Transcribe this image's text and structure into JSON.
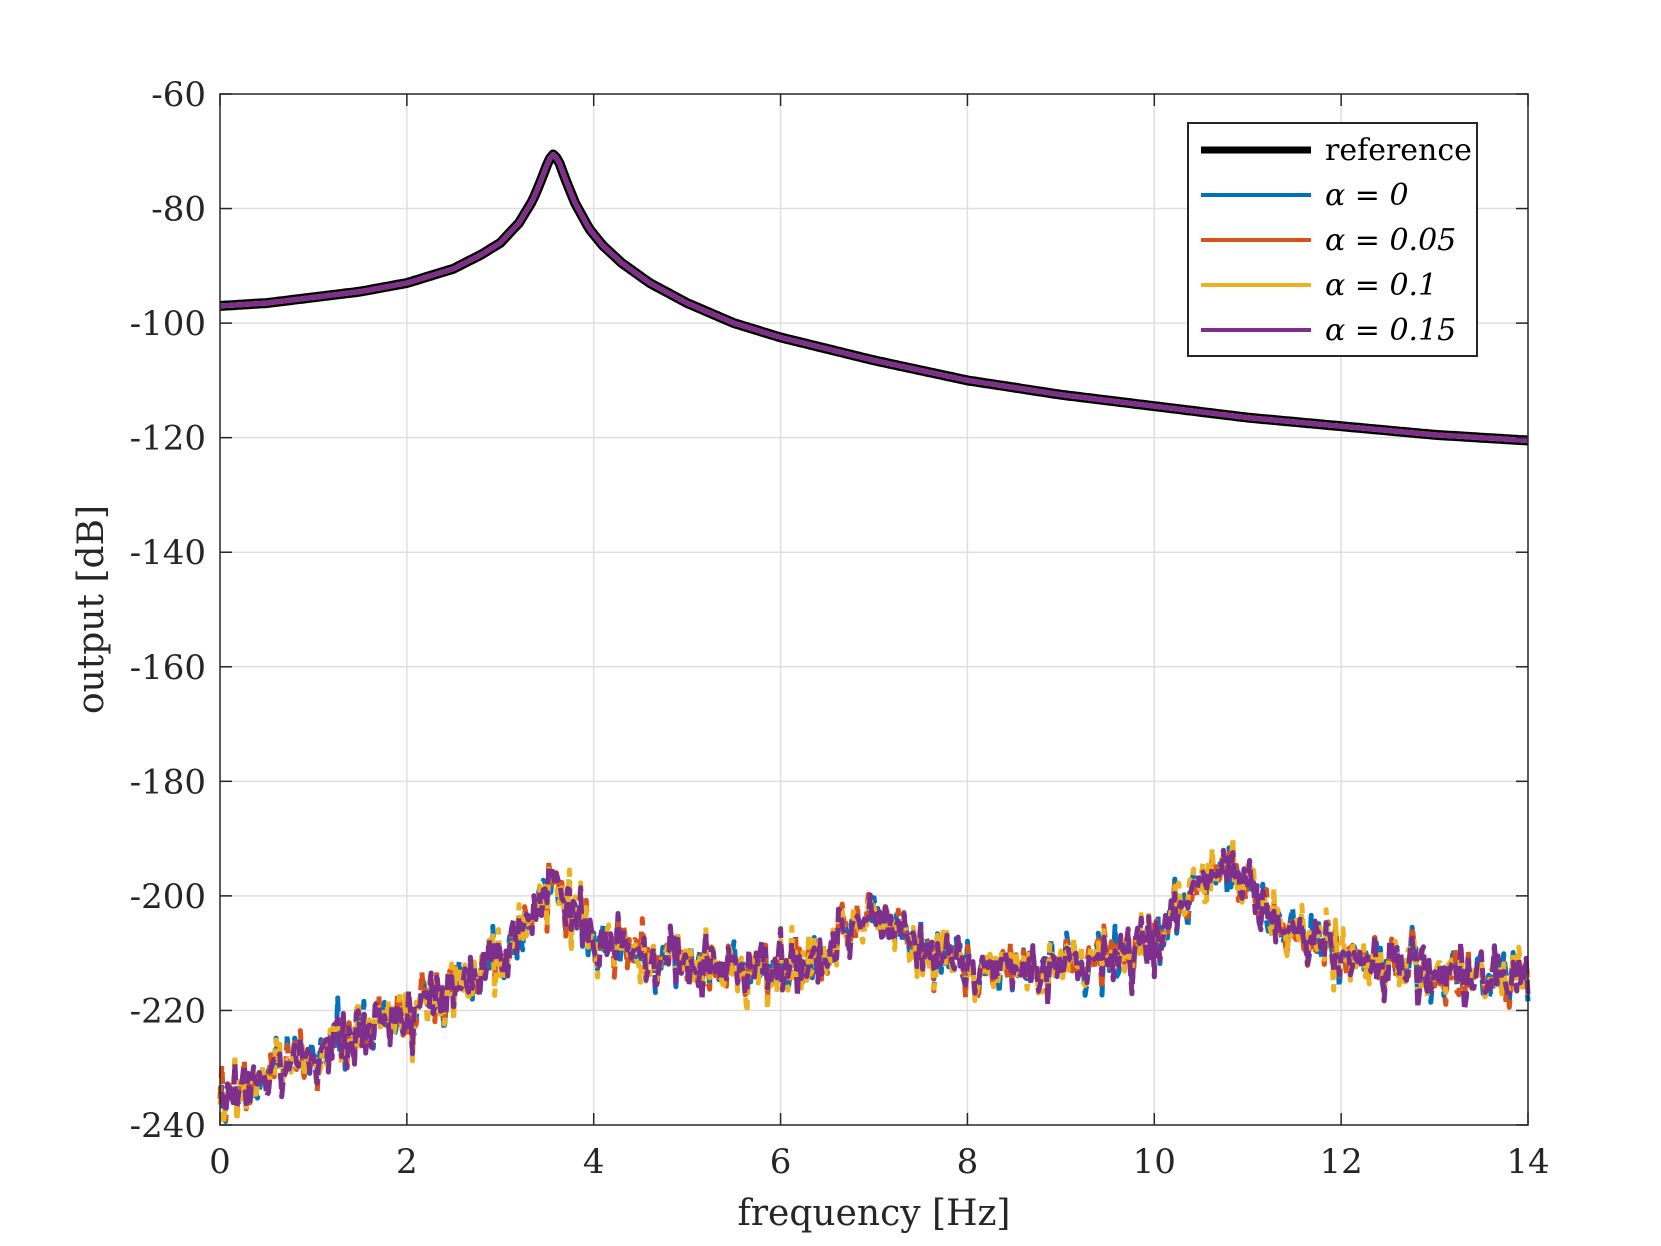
{
  "chart_data": {
    "type": "line",
    "title": "",
    "xlabel": "frequency [Hz]",
    "ylabel": "output [dB]",
    "xlim": [
      0,
      14
    ],
    "ylim": [
      -240,
      -60
    ],
    "xticks": [
      0,
      2,
      4,
      6,
      8,
      10,
      12,
      14
    ],
    "yticks": [
      -60,
      -80,
      -100,
      -120,
      -140,
      -160,
      -180,
      -200,
      -220,
      -240
    ],
    "xtick_labels": [
      "0",
      "2",
      "4",
      "6",
      "8",
      "10",
      "12",
      "14"
    ],
    "ytick_labels": [
      "-60",
      "-80",
      "-100",
      "-120",
      "-140",
      "-160",
      "-180",
      "-200",
      "-220",
      "-240"
    ],
    "grid": true,
    "legend_position": "top-right",
    "reference_curve": {
      "x": [
        0,
        0.5,
        1,
        1.5,
        2,
        2.5,
        2.8,
        3.0,
        3.2,
        3.35,
        3.45,
        3.52,
        3.57,
        3.62,
        3.7,
        3.8,
        3.95,
        4.1,
        4.3,
        4.6,
        5,
        5.5,
        6,
        7,
        8,
        9,
        10,
        11,
        12,
        13,
        14
      ],
      "y": [
        -97,
        -96.5,
        -95.5,
        -94.5,
        -93,
        -90.5,
        -88,
        -86,
        -82.5,
        -78.5,
        -74.5,
        -71.5,
        -70.5,
        -71.5,
        -75,
        -79,
        -83.5,
        -86.5,
        -89.5,
        -93,
        -96.5,
        -100,
        -102.5,
        -106.5,
        -110,
        -112.5,
        -114.5,
        -116.5,
        -118,
        -119.5,
        -120.5
      ]
    },
    "noise_envelope": {
      "x": [
        0,
        0.5,
        1,
        1.5,
        2,
        2.5,
        3,
        3.3,
        3.6,
        3.8,
        4.0,
        4.5,
        5,
        5.5,
        6,
        6.5,
        6.8,
        7.0,
        7.2,
        7.5,
        8,
        8.5,
        9,
        9.5,
        10,
        10.3,
        10.6,
        10.8,
        11.0,
        11.3,
        11.6,
        12,
        12.5,
        13,
        13.5,
        14
      ],
      "y": [
        -236,
        -231,
        -227,
        -224,
        -220,
        -216,
        -210,
        -203,
        -198,
        -203,
        -208,
        -210,
        -212,
        -212,
        -213,
        -211,
        -206,
        -202,
        -205,
        -210,
        -212,
        -213,
        -212,
        -211,
        -207,
        -201,
        -196,
        -196,
        -199,
        -204,
        -207,
        -210,
        -212,
        -213,
        -215,
        -214
      ]
    },
    "series": [
      {
        "name": "reference",
        "label": "reference",
        "color": "#000000"
      },
      {
        "name": "alpha_0",
        "label": "α = 0",
        "color": "#0072BD"
      },
      {
        "name": "alpha_0.05",
        "label": "α = 0.05",
        "color": "#D95319"
      },
      {
        "name": "alpha_0.1",
        "label": "α = 0.1",
        "color": "#EDB120"
      },
      {
        "name": "alpha_0.15",
        "label": "α = 0.15",
        "color": "#7E2F8E"
      }
    ]
  }
}
